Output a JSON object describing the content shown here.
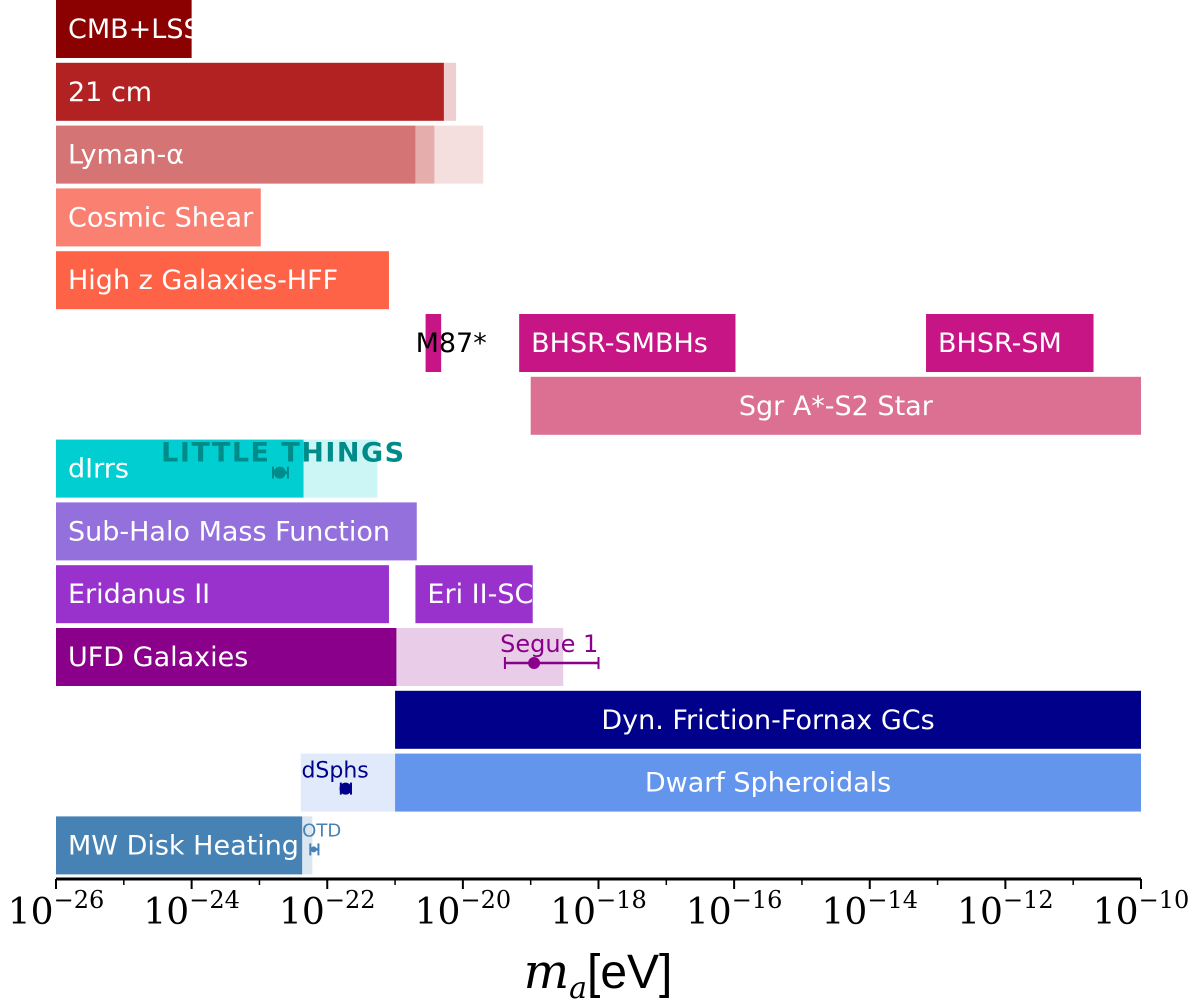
{
  "chart_data": {
    "type": "bar",
    "orientation": "horizontal-range",
    "x_scale": "log",
    "xlim": [
      1e-26,
      1e-10
    ],
    "xlabel": "m_a [eV]",
    "xlabel_var": "m",
    "xlabel_sub": "a",
    "xlabel_unit": "[eV]",
    "x_ticks": [
      {
        "base": "10",
        "exp": "−26"
      },
      {
        "base": "10",
        "exp": "−24"
      },
      {
        "base": "10",
        "exp": "−22"
      },
      {
        "base": "10",
        "exp": "−20"
      },
      {
        "base": "10",
        "exp": "−18"
      },
      {
        "base": "10",
        "exp": "−16"
      },
      {
        "base": "10",
        "exp": "−14"
      },
      {
        "base": "10",
        "exp": "−12"
      },
      {
        "base": "10",
        "exp": "−10"
      }
    ],
    "rows": [
      {
        "label": "CMB+LSS",
        "label_color": "#ffffff",
        "segments": [
          {
            "from": -26,
            "to": -24,
            "color": "#8b0000",
            "opacity": 1
          }
        ]
      },
      {
        "label": "21 cm",
        "label_color": "#ffffff",
        "segments": [
          {
            "from": -26,
            "to": -20.28,
            "color": "#b22222",
            "opacity": 1
          },
          {
            "from": -20.28,
            "to": -20.1,
            "color": "#b22222",
            "opacity": 0.22
          }
        ]
      },
      {
        "label": "Lyman-α",
        "label_color": "#ffffff",
        "segments": [
          {
            "from": -26,
            "to": -20.7,
            "color": "#cd5c5c",
            "opacity": 0.85
          },
          {
            "from": -20.7,
            "to": -20.42,
            "color": "#cd5c5c",
            "opacity": 0.5
          },
          {
            "from": -20.42,
            "to": -19.7,
            "color": "#cd5c5c",
            "opacity": 0.2
          }
        ]
      },
      {
        "label": "Cosmic Shear",
        "label_color": "#ffffff",
        "segments": [
          {
            "from": -26,
            "to": -22.98,
            "color": "#fa8072",
            "opacity": 1
          }
        ]
      },
      {
        "label": "High z Galaxies-HFF",
        "label_color": "#ffffff",
        "segments": [
          {
            "from": -26,
            "to": -21.09,
            "color": "#ff6347",
            "opacity": 1
          }
        ]
      },
      {
        "label": "",
        "label_color": "#ffffff",
        "segments": [
          {
            "from": -20.55,
            "to": -20.32,
            "color": "#c71585",
            "opacity": 1,
            "label": "M87*",
            "label_color": "#000000"
          },
          {
            "from": -19.17,
            "to": -15.98,
            "color": "#c71585",
            "opacity": 1,
            "label": "BHSR-SMBHs",
            "label_color": "#ffffff"
          },
          {
            "from": -13.17,
            "to": -10.7,
            "color": "#c71585",
            "opacity": 1,
            "label": "BHSR-SM",
            "label_color": "#ffffff"
          }
        ]
      },
      {
        "label": "",
        "label_color": "#ffffff",
        "segments": [
          {
            "from": -19.0,
            "to": -10,
            "color": "#db7093",
            "opacity": 1,
            "label": "Sgr A*-S2 Star",
            "label_color": "#ffffff"
          }
        ]
      },
      {
        "label": "dIrrs",
        "label_color": "#ffffff",
        "segments": [
          {
            "from": -26,
            "to": -22.35,
            "color": "#00ced1",
            "opacity": 1
          },
          {
            "from": -22.35,
            "to": -21.26,
            "color": "#00ced1",
            "opacity": 0.2
          }
        ]
      },
      {
        "label": "Sub-Halo Mass Function",
        "label_color": "#ffffff",
        "segments": [
          {
            "from": -26,
            "to": -20.68,
            "color": "#9370db",
            "opacity": 1
          }
        ]
      },
      {
        "label": "Eridanus II",
        "label_color": "#ffffff",
        "segments": [
          {
            "from": -26,
            "to": -21.09,
            "color": "#9932cc",
            "opacity": 1
          },
          {
            "from": -20.7,
            "to": -18.97,
            "color": "#9932cc",
            "opacity": 1,
            "label": "Eri II-SC",
            "label_color": "#ffffff"
          }
        ]
      },
      {
        "label": "UFD Galaxies",
        "label_color": "#ffffff",
        "segments": [
          {
            "from": -26,
            "to": -20.98,
            "color": "#8b008b",
            "opacity": 1
          },
          {
            "from": -20.98,
            "to": -18.52,
            "color": "#8b008b",
            "opacity": 0.2
          }
        ]
      },
      {
        "label": "",
        "label_color": "#ffffff",
        "segments": [
          {
            "from": -21.0,
            "to": -10,
            "color": "#00008b",
            "opacity": 1,
            "label": "Dyn. Friction-Fornax GCs",
            "label_color": "#ffffff"
          }
        ]
      },
      {
        "label": "",
        "label_color": "#ffffff",
        "segments": [
          {
            "from": -22.39,
            "to": -21.0,
            "color": "#6495ed",
            "opacity": 0.2
          },
          {
            "from": -21.0,
            "to": -10,
            "color": "#6495ed",
            "opacity": 1,
            "label": "Dwarf Spheroidals",
            "label_color": "#ffffff"
          }
        ]
      },
      {
        "label": "MW Disk Heating",
        "label_color": "#ffffff",
        "segments": [
          {
            "from": -26,
            "to": -22.37,
            "color": "#4682b4",
            "opacity": 1
          },
          {
            "from": -22.37,
            "to": -22.22,
            "color": "#4682b4",
            "opacity": 0.2
          }
        ]
      }
    ],
    "points": [
      {
        "label": "LITTLE THINGS",
        "row": 7,
        "x": -22.7,
        "err_low": -22.8,
        "err_high": -22.58,
        "color": "#008b8b"
      },
      {
        "label": "Segue 1",
        "row": 10,
        "x": -18.95,
        "err_low": -19.38,
        "err_high": -18.0,
        "color": "#8b008b"
      },
      {
        "label": "dSphs",
        "row": 12,
        "x": -21.73,
        "err_low": -21.8,
        "err_high": -21.65,
        "color": "#00008b"
      },
      {
        "label": "OTD",
        "row": 13,
        "x": -22.2,
        "err_low": -22.25,
        "err_high": -22.13,
        "color": "#4682b4"
      }
    ]
  }
}
